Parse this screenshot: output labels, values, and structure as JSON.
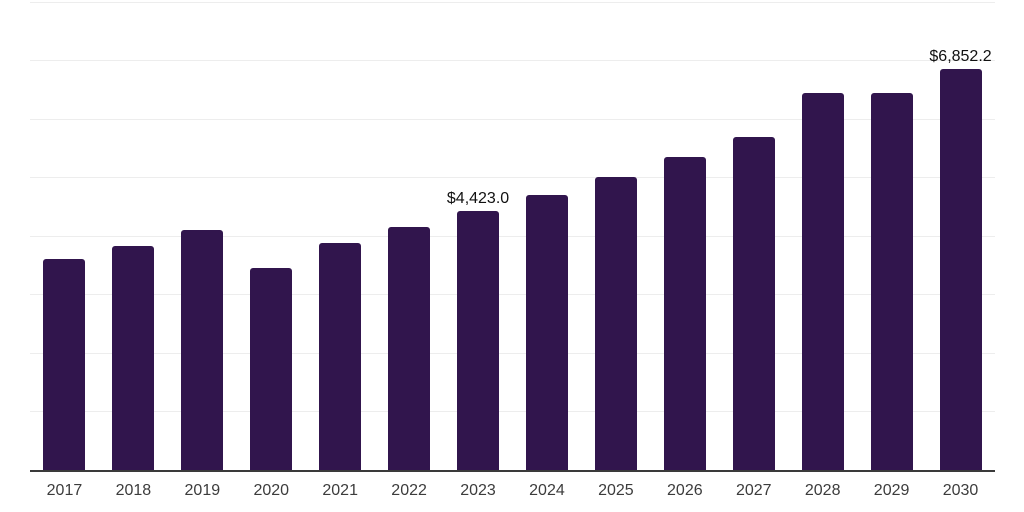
{
  "chart_data": {
    "type": "bar",
    "title": "",
    "xlabel": "",
    "ylabel": "",
    "categories": [
      "2017",
      "2018",
      "2019",
      "2020",
      "2021",
      "2022",
      "2023",
      "2024",
      "2025",
      "2026",
      "2027",
      "2028",
      "2029",
      "2030"
    ],
    "values": [
      3620,
      3830,
      4100,
      3460,
      3880,
      4160,
      4423.0,
      4710,
      5020,
      5360,
      5700,
      6440,
      6440,
      6852.2
    ],
    "data_labels": [
      {
        "category": "2023",
        "text": "$4,423.0"
      },
      {
        "category": "2030",
        "text": "$6,852.2"
      }
    ],
    "ylim": [
      0,
      8000
    ],
    "gridline_step": 1000,
    "grid": "horizontal-only",
    "y_axis_labels_visible": false,
    "legend": "none",
    "colors": {
      "bar": "#31154d",
      "axis_line": "#3a3a3a",
      "gridline": "#ededed",
      "value_label": "#111111",
      "tick_label": "#3c3c3c",
      "background": "#ffffff"
    }
  }
}
